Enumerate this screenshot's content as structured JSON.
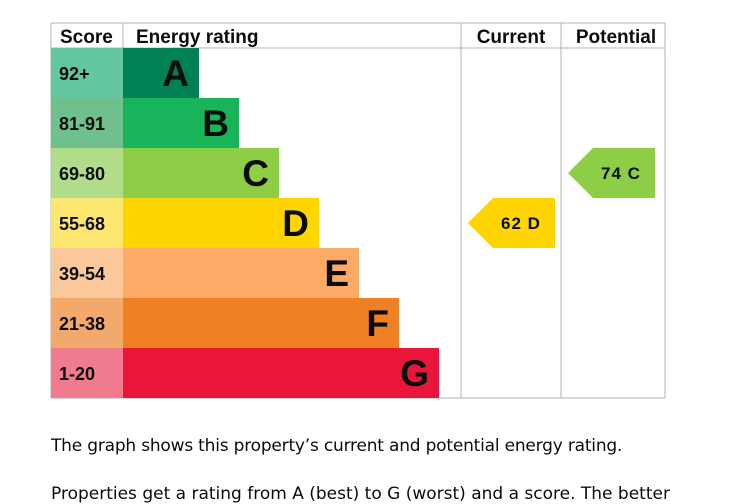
{
  "chart_data": {
    "type": "bar",
    "title": "",
    "headers": {
      "score": "Score",
      "rating": "Energy rating",
      "current": "Current",
      "potential": "Potential"
    },
    "bands": [
      {
        "score": "92+",
        "letter": "A",
        "color": "#008054",
        "score_bg": "#63c8a1",
        "level": 1
      },
      {
        "score": "81-91",
        "letter": "B",
        "color": "#19b459",
        "score_bg": "#6fc08c",
        "level": 2
      },
      {
        "score": "69-80",
        "letter": "C",
        "color": "#8dce46",
        "score_bg": "#b1dd8a",
        "level": 3
      },
      {
        "score": "55-68",
        "letter": "D",
        "color": "#ffd500",
        "score_bg": "#fde66f",
        "level": 4
      },
      {
        "score": "39-54",
        "letter": "E",
        "color": "#fcaa65",
        "score_bg": "#fbc79b",
        "level": 5
      },
      {
        "score": "21-38",
        "letter": "F",
        "color": "#ef8023",
        "score_bg": "#f3a96b",
        "level": 6
      },
      {
        "score": "1-20",
        "letter": "G",
        "color": "#e9153b",
        "score_bg": "#f07a8e",
        "level": 7
      }
    ],
    "current": {
      "value": 62,
      "letter": "D",
      "label": "62 D",
      "color": "#ffd500"
    },
    "potential": {
      "value": 74,
      "letter": "C",
      "label": "74 C",
      "color": "#8dce46"
    }
  },
  "caption": "The graph shows this property’s current and potential energy rating.",
  "caption_next": "Properties get a rating from A (best) to G (worst) and a score. The better"
}
